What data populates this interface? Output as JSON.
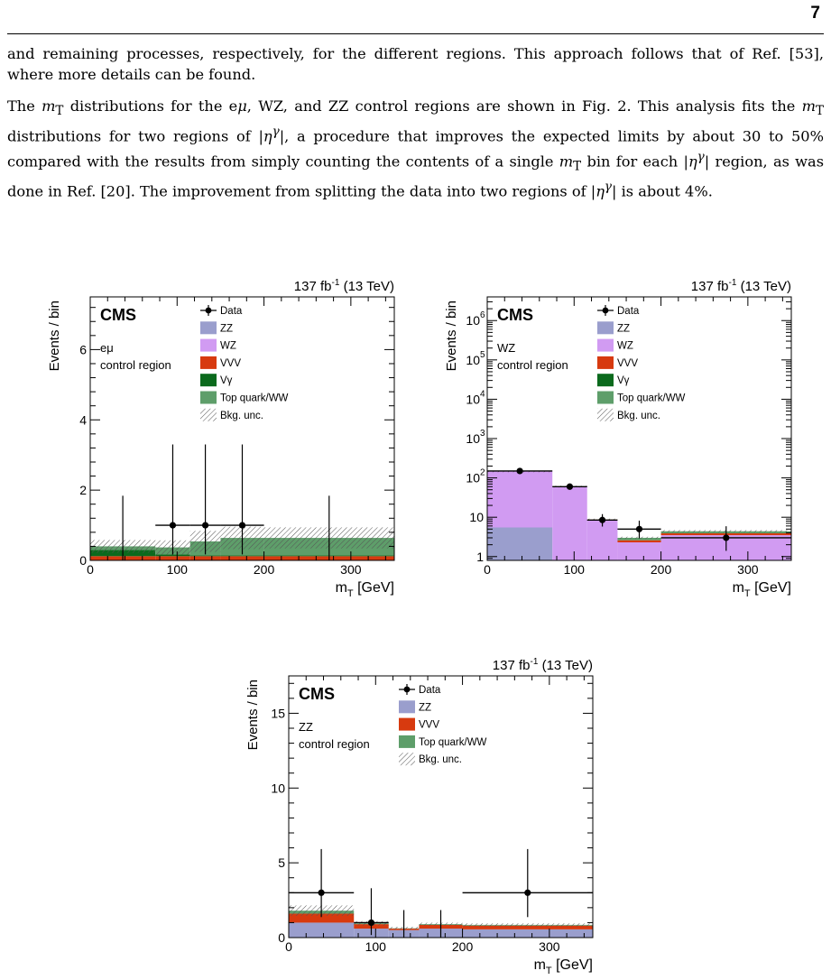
{
  "page_number": "7",
  "paragraphs": [
    {
      "text": "and remaining processes, respectively, for the different regions. This approach follows that of Ref. [53], where more details can be found."
    },
    {
      "html": "The <i>m</i><sub>T</sub> distributions for the e<i>μ</i>, WZ, and ZZ control regions are shown in Fig. 2. This analysis fits the <i>m</i><sub>T</sub> distributions for two regions of |<i>η</i><sup><i>γ</i></sup>|, a procedure that improves the expected limits by about 30 to 50% compared with the results from simply counting the contents of a single <i>m</i><sub>T</sub> bin for each |<i>η</i><sup><i>γ</i></sup>| region, as was done in Ref. [20]. The improvement from splitting the data into two regions of |<i>η</i><sup><i>γ</i></sup>| is about 4%."
    }
  ],
  "chart_data": [
    {
      "type": "bar",
      "id": "emu",
      "lumi": "137 fb",
      "lumi_sup": "-1",
      "lumi_energy": " (13 TeV)",
      "experiment": "CMS",
      "region_lines": [
        "eμ",
        "control region"
      ],
      "ylabel": "Events / bin",
      "xlabel": "m",
      "xlabel_sub": "T",
      "xlabel_unit": " [GeV]",
      "log_y": false,
      "xlim": [
        0,
        350
      ],
      "ylim": [
        0,
        7.5
      ],
      "yticks": [
        0,
        2,
        4,
        6
      ],
      "xticks": [
        0,
        100,
        200,
        300
      ],
      "legend": [
        "Data",
        "ZZ",
        "WZ",
        "VVV",
        "Vγ",
        "Top quark/WW",
        "Bkg. unc."
      ],
      "bins": [
        0,
        75,
        115,
        150,
        200,
        350
      ],
      "stack": [
        {
          "name": "VVV",
          "color": "#d73a0f",
          "values": [
            0.12,
            0.12,
            0.12,
            0.12,
            0.12
          ]
        },
        {
          "name": "Vγ",
          "color": "#0b6a1d",
          "values": [
            0.18,
            0.05,
            0.02,
            0.02,
            0.02
          ]
        },
        {
          "name": "Top quark/WW",
          "color": "#5e9e6a",
          "values": [
            0.1,
            0.2,
            0.4,
            0.5,
            0.5
          ]
        }
      ],
      "uncertainty": [
        0.18,
        0.2,
        0.3,
        0.32,
        0.3
      ],
      "data": [
        {
          "x": 37.5,
          "y": 0,
          "xerr": [
            0,
            0
          ],
          "yerr": [
            0,
            1.84
          ]
        },
        {
          "x": 95,
          "y": 1,
          "xerr": [
            20,
            20
          ],
          "yerr": [
            0.83,
            2.3
          ]
        },
        {
          "x": 132.5,
          "y": 1,
          "xerr": [
            17.5,
            17.5
          ],
          "yerr": [
            0.83,
            2.3
          ]
        },
        {
          "x": 175,
          "y": 1,
          "xerr": [
            25,
            25
          ],
          "yerr": [
            0.83,
            2.3
          ]
        },
        {
          "x": 275,
          "y": 0,
          "xerr": [
            0,
            0
          ],
          "yerr": [
            0,
            1.84
          ]
        }
      ]
    },
    {
      "type": "bar",
      "id": "wz",
      "lumi": "137 fb",
      "lumi_sup": "-1",
      "lumi_energy": " (13 TeV)",
      "experiment": "CMS",
      "region_lines": [
        "WZ",
        "control region"
      ],
      "ylabel": "Events / bin",
      "xlabel": "m",
      "xlabel_sub": "T",
      "xlabel_unit": " [GeV]",
      "log_y": true,
      "xlim": [
        0,
        350
      ],
      "ylim": [
        0.8,
        4000000
      ],
      "yticks": [
        1,
        10,
        100,
        1000,
        10000,
        100000,
        1000000
      ],
      "ytick_labels": [
        [
          "1",
          ""
        ],
        [
          "10",
          ""
        ],
        [
          "10",
          "2"
        ],
        [
          "10",
          "3"
        ],
        [
          "10",
          "4"
        ],
        [
          "10",
          "5"
        ],
        [
          "10",
          "6"
        ]
      ],
      "xticks": [
        0,
        100,
        200,
        300
      ],
      "legend": [
        "Data",
        "ZZ",
        "WZ",
        "VVV",
        "Vγ",
        "Top quark/WW",
        "Bkg. unc."
      ],
      "bins": [
        0,
        75,
        115,
        150,
        200,
        350
      ],
      "stack": [
        {
          "name": "ZZ",
          "color": "#9a9ecd",
          "values": [
            5.5,
            0,
            0,
            0,
            0
          ]
        },
        {
          "name": "WZ",
          "color": "#d19bf2",
          "values": [
            140,
            60,
            8.5,
            2.3,
            3.5
          ]
        },
        {
          "name": "VVV",
          "color": "#d73a0f",
          "values": [
            0.2,
            0.2,
            0.2,
            0.3,
            0.4
          ]
        },
        {
          "name": "Top quark/WW",
          "color": "#5e9e6a",
          "values": [
            0,
            0,
            0,
            0.4,
            0.5
          ]
        }
      ],
      "uncertainty": [
        6,
        3,
        0.5,
        0.2,
        0.3
      ],
      "data": [
        {
          "x": 37.5,
          "y": 150,
          "xerr": [
            37.5,
            37.5
          ],
          "yerr": [
            12,
            12
          ]
        },
        {
          "x": 95,
          "y": 60,
          "xerr": [
            20,
            20
          ],
          "yerr": [
            8,
            8
          ]
        },
        {
          "x": 132.5,
          "y": 8.5,
          "xerr": [
            17.5,
            17.5
          ],
          "yerr": [
            2.7,
            3.5
          ]
        },
        {
          "x": 175,
          "y": 5,
          "xerr": [
            25,
            25
          ],
          "yerr": [
            2.1,
            3.2
          ]
        },
        {
          "x": 275,
          "y": 3,
          "xerr": [
            75,
            75
          ],
          "yerr": [
            1.6,
            2.9
          ]
        }
      ]
    },
    {
      "type": "bar",
      "id": "zz",
      "lumi": "137 fb",
      "lumi_sup": "-1",
      "lumi_energy": " (13 TeV)",
      "experiment": "CMS",
      "region_lines": [
        "ZZ",
        "control region"
      ],
      "ylabel": "Events / bin",
      "xlabel": "m",
      "xlabel_sub": "T",
      "xlabel_unit": " [GeV]",
      "log_y": false,
      "xlim": [
        0,
        350
      ],
      "ylim": [
        0,
        17.5
      ],
      "yticks": [
        0,
        5,
        10,
        15
      ],
      "xticks": [
        0,
        100,
        200,
        300
      ],
      "legend": [
        "Data",
        "ZZ",
        "VVV",
        "Top quark/WW",
        "Bkg. unc."
      ],
      "bins": [
        0,
        75,
        115,
        150,
        200,
        350
      ],
      "stack": [
        {
          "name": "ZZ",
          "color": "#9a9ecd",
          "values": [
            1.0,
            0.6,
            0.5,
            0.6,
            0.55
          ]
        },
        {
          "name": "VVV",
          "color": "#d73a0f",
          "values": [
            0.6,
            0.3,
            0.1,
            0.25,
            0.25
          ]
        },
        {
          "name": "Top quark/WW",
          "color": "#5e9e6a",
          "values": [
            0.2,
            0.05,
            0.02,
            0.05,
            0.05
          ]
        }
      ],
      "uncertainty": [
        0.35,
        0.15,
        0.1,
        0.1,
        0.1
      ],
      "data": [
        {
          "x": 37.5,
          "y": 3,
          "xerr": [
            37.5,
            37.5
          ],
          "yerr": [
            1.63,
            2.92
          ]
        },
        {
          "x": 95,
          "y": 1,
          "xerr": [
            20,
            20
          ],
          "yerr": [
            0.83,
            2.3
          ]
        },
        {
          "x": 132.5,
          "y": 0,
          "xerr": [
            0,
            0
          ],
          "yerr": [
            0,
            1.84
          ]
        },
        {
          "x": 175,
          "y": 0,
          "xerr": [
            0,
            0
          ],
          "yerr": [
            0,
            1.84
          ]
        },
        {
          "x": 275,
          "y": 3,
          "xerr": [
            75,
            75
          ],
          "yerr": [
            1.63,
            2.92
          ]
        }
      ]
    }
  ]
}
